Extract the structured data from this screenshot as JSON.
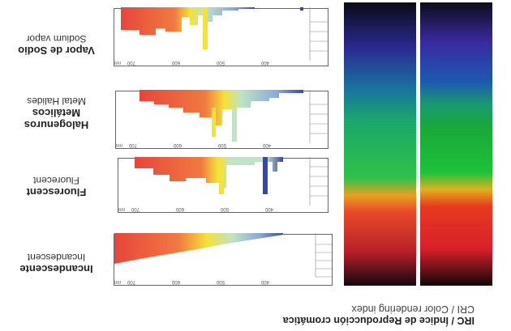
{
  "title": {
    "line1": "IRC / Índice de Reproducción cromática",
    "line2": "CRI / Color rendering index"
  },
  "axis": {
    "unit": "nm",
    "ticks": [
      "700",
      "600",
      "500",
      "400"
    ]
  },
  "lamps": [
    {
      "name_es": "Incandescente",
      "name_en": "Incandescent"
    },
    {
      "name_es": "Fluorescent",
      "name_en": "Fluorecent"
    },
    {
      "name_es": "Halogenuros Metálicos",
      "name_en": "Metal Halides"
    },
    {
      "name_es": "Vapor de Sodio",
      "name_en": "Sodium vapor"
    }
  ],
  "colors": {
    "red": "#e8453c",
    "yellow": "#f3e23a",
    "green": "#bfe3c4",
    "blue": "#3a4aa0"
  }
}
